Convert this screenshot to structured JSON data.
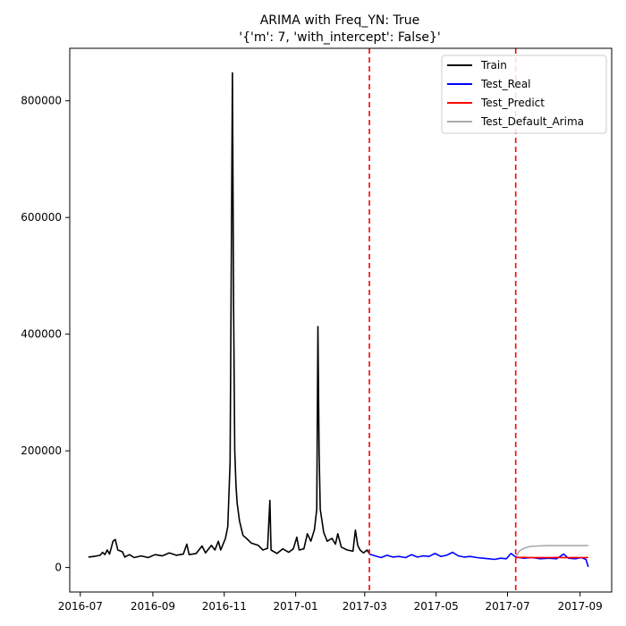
{
  "chart_data": {
    "type": "line",
    "title": "ARIMA with Freq_YN: True",
    "subtitle": "'{'m': 7, 'with_intercept': False}'",
    "xlabel": "",
    "ylabel": "",
    "x_ticks": [
      "2016-07",
      "2016-09",
      "2016-11",
      "2017-01",
      "2017-03",
      "2017-05",
      "2017-07",
      "2017-09"
    ],
    "y_ticks": [
      0,
      200000,
      400000,
      600000,
      800000
    ],
    "y_tick_labels": [
      "0",
      "200000",
      "400000",
      "600000",
      "800000"
    ],
    "xlim": [
      "2016-06-22",
      "2017-09-28"
    ],
    "ylim": [
      -42000,
      890000
    ],
    "grid": false,
    "legend_position": "top-right",
    "vertical_lines": [
      {
        "x": "2017-03-05",
        "color": "#ff0000",
        "style": "dashed"
      },
      {
        "x": "2017-07-08",
        "color": "#ff0000",
        "style": "dashed"
      }
    ],
    "series": [
      {
        "name": "Train",
        "color": "#000000",
        "points": [
          [
            "2016-07-08",
            18000
          ],
          [
            "2016-07-14",
            19500
          ],
          [
            "2016-07-18",
            21000
          ],
          [
            "2016-07-20",
            26000
          ],
          [
            "2016-07-22",
            22000
          ],
          [
            "2016-07-24",
            30000
          ],
          [
            "2016-07-26",
            23000
          ],
          [
            "2016-07-29",
            45000
          ],
          [
            "2016-07-31",
            48000
          ],
          [
            "2016-08-02",
            30000
          ],
          [
            "2016-08-06",
            27000
          ],
          [
            "2016-08-08",
            18000
          ],
          [
            "2016-08-12",
            22000
          ],
          [
            "2016-08-16",
            17000
          ],
          [
            "2016-08-22",
            20000
          ],
          [
            "2016-08-28",
            17000
          ],
          [
            "2016-09-03",
            22000
          ],
          [
            "2016-09-09",
            20000
          ],
          [
            "2016-09-15",
            25000
          ],
          [
            "2016-09-21",
            21000
          ],
          [
            "2016-09-27",
            23000
          ],
          [
            "2016-09-30",
            40000
          ],
          [
            "2016-10-02",
            22000
          ],
          [
            "2016-10-08",
            24000
          ],
          [
            "2016-10-13",
            37000
          ],
          [
            "2016-10-16",
            25000
          ],
          [
            "2016-10-21",
            38000
          ],
          [
            "2016-10-24",
            30000
          ],
          [
            "2016-10-27",
            45000
          ],
          [
            "2016-10-29",
            30000
          ],
          [
            "2016-11-02",
            50000
          ],
          [
            "2016-11-04",
            70000
          ],
          [
            "2016-11-06",
            180000
          ],
          [
            "2016-11-08",
            848000
          ],
          [
            "2016-11-09",
            450000
          ],
          [
            "2016-11-10",
            200000
          ],
          [
            "2016-11-11",
            140000
          ],
          [
            "2016-11-12",
            110000
          ],
          [
            "2016-11-14",
            80000
          ],
          [
            "2016-11-17",
            55000
          ],
          [
            "2016-11-20",
            50000
          ],
          [
            "2016-11-24",
            42000
          ],
          [
            "2016-11-30",
            38000
          ],
          [
            "2016-12-04",
            30000
          ],
          [
            "2016-12-08",
            33000
          ],
          [
            "2016-12-10",
            115000
          ],
          [
            "2016-12-11",
            30000
          ],
          [
            "2016-12-16",
            24000
          ],
          [
            "2016-12-21",
            32000
          ],
          [
            "2016-12-26",
            26000
          ],
          [
            "2016-12-30",
            32000
          ],
          [
            "2017-01-02",
            52000
          ],
          [
            "2017-01-04",
            30000
          ],
          [
            "2017-01-08",
            32000
          ],
          [
            "2017-01-11",
            58000
          ],
          [
            "2017-01-14",
            45000
          ],
          [
            "2017-01-17",
            65000
          ],
          [
            "2017-01-19",
            100000
          ],
          [
            "2017-01-20",
            413000
          ],
          [
            "2017-01-21",
            200000
          ],
          [
            "2017-01-22",
            100000
          ],
          [
            "2017-01-25",
            60000
          ],
          [
            "2017-01-28",
            45000
          ],
          [
            "2017-02-01",
            50000
          ],
          [
            "2017-02-04",
            40000
          ],
          [
            "2017-02-06",
            58000
          ],
          [
            "2017-02-09",
            35000
          ],
          [
            "2017-02-14",
            30000
          ],
          [
            "2017-02-19",
            28000
          ],
          [
            "2017-02-21",
            64000
          ],
          [
            "2017-02-23",
            38000
          ],
          [
            "2017-02-25",
            30000
          ],
          [
            "2017-02-28",
            25000
          ],
          [
            "2017-03-03",
            30000
          ],
          [
            "2017-03-05",
            24000
          ]
        ]
      },
      {
        "name": "Test_Real",
        "color": "#0000ff",
        "points": [
          [
            "2017-03-05",
            23000
          ],
          [
            "2017-03-10",
            20000
          ],
          [
            "2017-03-15",
            17000
          ],
          [
            "2017-03-20",
            21000
          ],
          [
            "2017-03-25",
            18000
          ],
          [
            "2017-03-30",
            19000
          ],
          [
            "2017-04-05",
            17000
          ],
          [
            "2017-04-10",
            22000
          ],
          [
            "2017-04-15",
            18000
          ],
          [
            "2017-04-20",
            20000
          ],
          [
            "2017-04-25",
            19000
          ],
          [
            "2017-04-30",
            24000
          ],
          [
            "2017-05-05",
            19000
          ],
          [
            "2017-05-10",
            21000
          ],
          [
            "2017-05-15",
            26000
          ],
          [
            "2017-05-20",
            20000
          ],
          [
            "2017-05-25",
            18000
          ],
          [
            "2017-05-30",
            19000
          ],
          [
            "2017-06-05",
            17000
          ],
          [
            "2017-06-10",
            16000
          ],
          [
            "2017-06-15",
            15000
          ],
          [
            "2017-06-20",
            14000
          ],
          [
            "2017-06-25",
            16000
          ],
          [
            "2017-06-30",
            15000
          ],
          [
            "2017-07-04",
            24000
          ],
          [
            "2017-07-08",
            18000
          ],
          [
            "2017-07-15",
            16000
          ],
          [
            "2017-07-22",
            17000
          ],
          [
            "2017-07-29",
            15000
          ],
          [
            "2017-08-05",
            16000
          ],
          [
            "2017-08-12",
            15000
          ],
          [
            "2017-08-18",
            23000
          ],
          [
            "2017-08-22",
            16000
          ],
          [
            "2017-08-28",
            15000
          ],
          [
            "2017-09-02",
            17000
          ],
          [
            "2017-09-06",
            14000
          ],
          [
            "2017-09-08",
            1000
          ]
        ]
      },
      {
        "name": "Test_Predict",
        "color": "#ff0000",
        "points": [
          [
            "2017-07-08",
            17000
          ],
          [
            "2017-07-15",
            17500
          ],
          [
            "2017-07-22",
            16800
          ],
          [
            "2017-07-29",
            17200
          ],
          [
            "2017-08-05",
            17000
          ],
          [
            "2017-08-12",
            17300
          ],
          [
            "2017-08-19",
            16900
          ],
          [
            "2017-08-26",
            17200
          ],
          [
            "2017-09-02",
            17000
          ],
          [
            "2017-09-08",
            17100
          ]
        ]
      },
      {
        "name": "Test_Default_Arima",
        "color": "#aaaaaa",
        "points": [
          [
            "2017-07-08",
            17000
          ],
          [
            "2017-07-11",
            28000
          ],
          [
            "2017-07-15",
            33000
          ],
          [
            "2017-07-20",
            36000
          ],
          [
            "2017-07-27",
            37000
          ],
          [
            "2017-08-05",
            37500
          ],
          [
            "2017-08-20",
            37500
          ],
          [
            "2017-09-08",
            37500
          ]
        ]
      }
    ]
  }
}
